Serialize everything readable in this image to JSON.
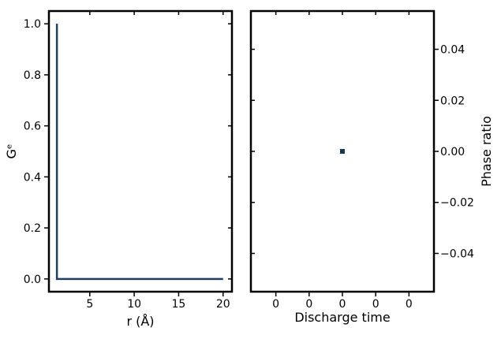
{
  "chart_data": [
    {
      "type": "line",
      "xlabel": "r (Å)",
      "ylabel": "Gᵉ",
      "xlim": [
        0.4,
        21.0
      ],
      "ylim": [
        -0.05,
        1.05
      ],
      "xticks": [
        5,
        10,
        15,
        20
      ],
      "xtick_labels": [
        "5",
        "10",
        "15",
        "20"
      ],
      "yticks": [
        0.0,
        0.2,
        0.4,
        0.6,
        0.8,
        1.0
      ],
      "ytick_labels": [
        "0.0",
        "0.2",
        "0.4",
        "0.6",
        "0.8",
        "1.0"
      ],
      "grid": false,
      "legend": "none",
      "series": [
        {
          "color": "#1f3f66",
          "x": [
            1.3,
            1.3,
            1.4,
            20.0
          ],
          "y": [
            1.0,
            0.0,
            0.0,
            0.0
          ]
        }
      ]
    },
    {
      "type": "scatter",
      "xlabel": "Discharge time",
      "ylabel": "Phase ratio",
      "y_axis_side": "right",
      "xlim": [
        -0.055,
        0.055
      ],
      "ylim": [
        -0.055,
        0.055
      ],
      "xticks": [
        -0.04,
        -0.02,
        0.0,
        0.02,
        0.04
      ],
      "xtick_labels": [
        "0",
        "0",
        "0",
        "0",
        "0"
      ],
      "yticks": [
        -0.04,
        -0.02,
        0.0,
        0.02,
        0.04
      ],
      "ytick_labels": [
        "−0.04",
        "−0.02",
        "0.00",
        "0.02",
        "0.04"
      ],
      "grid": false,
      "legend": "none",
      "series": [
        {
          "color": "#0b3a5c",
          "x": [
            0.0
          ],
          "y": [
            0.0
          ],
          "marker": "square"
        }
      ]
    }
  ]
}
